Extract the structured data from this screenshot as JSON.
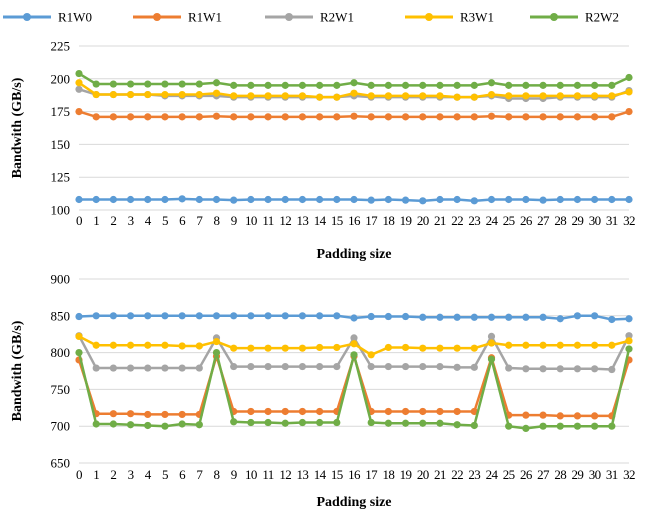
{
  "colors": {
    "R1W0": "#5b9bd5",
    "R1W1": "#ed7d31",
    "R2W1": "#a5a5a5",
    "R3W1": "#ffc000",
    "R2W2": "#70ad47"
  },
  "legend": [
    {
      "name": "R1W0",
      "color": "#5b9bd5"
    },
    {
      "name": "R1W1",
      "color": "#ed7d31"
    },
    {
      "name": "R2W1",
      "color": "#a5a5a5"
    },
    {
      "name": "R3W1",
      "color": "#ffc000"
    },
    {
      "name": "R2W2",
      "color": "#70ad47"
    }
  ],
  "chart_data": [
    {
      "type": "line",
      "xlabel": "Padding size",
      "ylabel": "Bandwith (GB/s)",
      "ylim": [
        100,
        225
      ],
      "yticks": [
        100,
        125,
        150,
        175,
        200,
        225
      ],
      "x": [
        0,
        1,
        2,
        3,
        4,
        5,
        6,
        7,
        8,
        9,
        10,
        11,
        12,
        13,
        14,
        15,
        16,
        17,
        18,
        19,
        20,
        21,
        22,
        23,
        24,
        25,
        26,
        27,
        28,
        29,
        30,
        31,
        32
      ],
      "grid": "horizontal",
      "legend_placement": "top",
      "series": [
        {
          "name": "R1W0",
          "values": [
            108,
            108,
            108,
            108,
            108,
            108,
            108.5,
            108,
            108,
            107.5,
            108,
            108,
            108,
            108,
            108,
            108,
            108,
            107.5,
            108,
            107.5,
            107,
            108,
            108,
            107,
            108,
            108,
            108,
            107.5,
            108,
            108,
            108,
            108,
            108
          ]
        },
        {
          "name": "R1W1",
          "values": [
            175,
            171,
            171,
            171,
            171,
            171,
            171,
            171,
            171.5,
            171,
            171,
            171,
            171,
            171,
            171,
            171,
            171.5,
            171,
            171,
            171,
            171,
            171,
            171,
            171,
            171.5,
            171,
            171,
            171,
            171,
            171,
            171,
            171,
            175
          ]
        },
        {
          "name": "R2W1",
          "values": [
            192,
            188,
            188,
            188,
            188,
            187,
            187,
            187,
            187,
            186,
            186,
            186,
            186,
            186,
            186,
            186,
            187,
            186,
            186,
            186,
            186,
            186,
            186,
            186,
            187,
            185,
            185,
            185,
            186,
            186,
            186,
            186,
            191
          ]
        },
        {
          "name": "R3W1",
          "values": [
            197,
            188,
            188,
            188,
            188,
            188,
            188,
            188,
            189,
            187,
            187,
            187,
            187,
            187,
            186,
            186,
            189,
            187,
            187,
            187,
            187,
            187,
            186,
            186,
            188,
            187,
            187,
            187,
            187,
            187,
            187,
            187,
            190
          ]
        },
        {
          "name": "R2W2",
          "values": [
            204,
            196,
            196,
            196,
            196,
            196,
            196,
            196,
            197,
            195,
            195,
            195,
            195,
            195,
            195,
            195,
            197,
            195,
            195,
            195,
            195,
            195,
            195,
            195,
            197,
            195,
            195,
            195,
            195,
            195,
            195,
            195,
            201
          ]
        }
      ]
    },
    {
      "type": "line",
      "xlabel": "Padding size",
      "ylabel": "Bandwith (GB/s)",
      "ylim": [
        650,
        900
      ],
      "yticks": [
        650,
        700,
        750,
        800,
        850,
        900
      ],
      "x": [
        0,
        1,
        2,
        3,
        4,
        5,
        6,
        7,
        8,
        9,
        10,
        11,
        12,
        13,
        14,
        15,
        16,
        17,
        18,
        19,
        20,
        21,
        22,
        23,
        24,
        25,
        26,
        27,
        28,
        29,
        30,
        31,
        32
      ],
      "grid": "horizontal",
      "series": [
        {
          "name": "R1W0",
          "values": [
            849,
            850,
            850,
            850,
            850,
            850,
            850,
            850,
            850,
            850,
            850,
            850,
            850,
            850,
            850,
            850,
            847,
            849,
            849,
            849,
            848,
            848,
            848,
            848,
            848,
            848,
            848,
            848,
            846,
            850,
            850,
            845,
            846
          ]
        },
        {
          "name": "R1W1",
          "values": [
            790,
            717,
            717,
            717,
            716,
            716,
            716,
            716,
            795,
            720,
            720,
            720,
            720,
            720,
            720,
            720,
            795,
            720,
            720,
            720,
            720,
            720,
            720,
            720,
            793,
            715,
            715,
            715,
            714,
            714,
            714,
            714,
            790
          ]
        },
        {
          "name": "R2W1",
          "values": [
            823,
            779,
            779,
            779,
            779,
            779,
            779,
            779,
            820,
            781,
            781,
            781,
            781,
            781,
            781,
            781,
            820,
            781,
            781,
            781,
            781,
            781,
            780,
            780,
            822,
            779,
            778,
            778,
            778,
            778,
            778,
            777,
            823
          ]
        },
        {
          "name": "R3W1",
          "values": [
            822,
            810,
            810,
            810,
            810,
            810,
            809,
            809,
            815,
            806,
            806,
            806,
            806,
            806,
            807,
            807,
            812,
            797,
            807,
            807,
            806,
            806,
            806,
            806,
            813,
            810,
            810,
            810,
            810,
            810,
            810,
            810,
            816
          ]
        },
        {
          "name": "R2W2",
          "values": [
            800,
            703,
            703,
            702,
            701,
            700,
            703,
            702,
            800,
            706,
            705,
            705,
            704,
            705,
            705,
            705,
            797,
            705,
            704,
            704,
            704,
            704,
            702,
            701,
            791,
            700,
            697,
            700,
            700,
            700,
            700,
            700,
            805
          ]
        }
      ]
    }
  ]
}
